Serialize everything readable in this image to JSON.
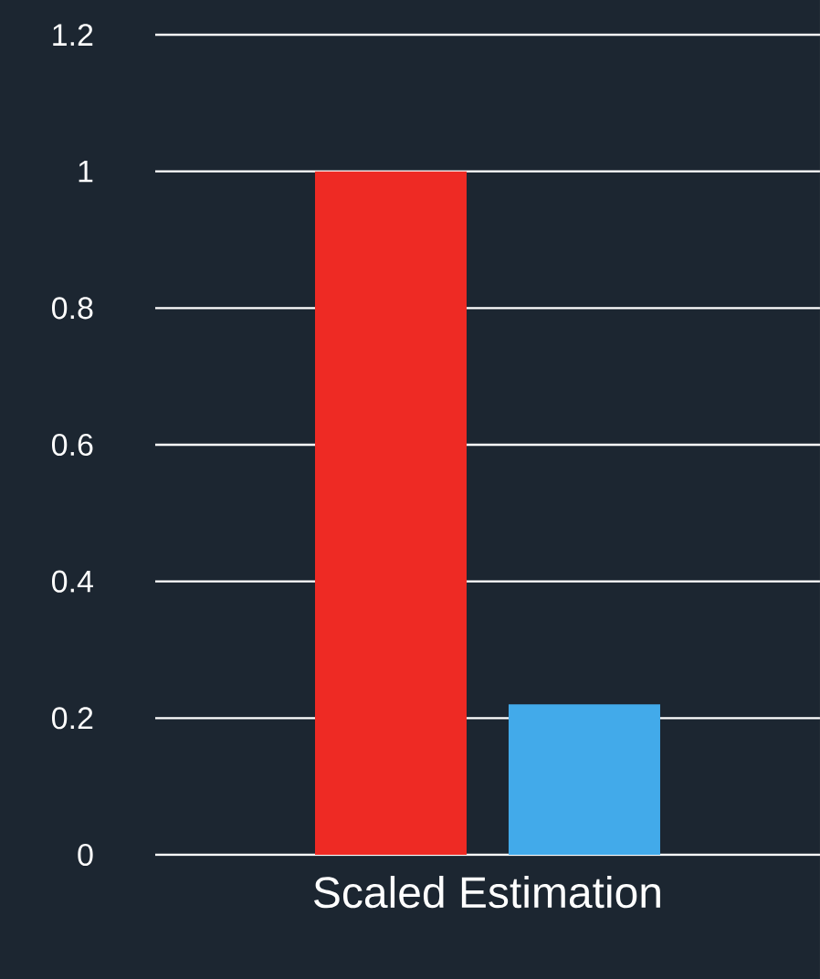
{
  "chart_data": {
    "type": "bar",
    "categories": [
      "Scaled Estimation"
    ],
    "series": [
      {
        "color": "#ee2a24",
        "values": [
          1
        ]
      },
      {
        "color": "#42aaea",
        "values": [
          0.22
        ]
      }
    ],
    "ylim": [
      0,
      1.2
    ],
    "yticks": [
      0,
      0.2,
      0.4,
      0.6,
      0.8,
      1,
      1.2
    ],
    "grid": "y"
  }
}
